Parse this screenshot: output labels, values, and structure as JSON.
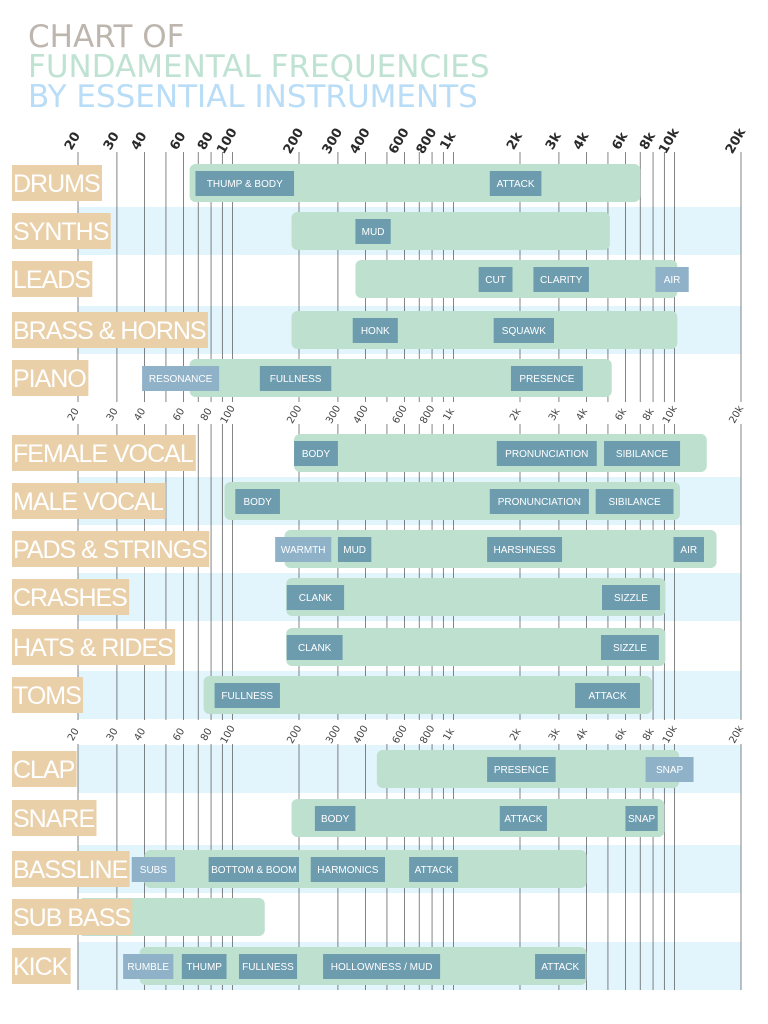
{
  "title": {
    "line1": "CHART OF",
    "line2": "FUNDAMENTAL FREQUENCIES",
    "line3": "BY ESSENTIAL INSTRUMENTS"
  },
  "colors": {
    "title1": "#bdb6ae",
    "title2": "#bfe2d3",
    "title3": "#b9ddf7",
    "category_tag": "#e9d0a9",
    "range_bar": "#bde0cf",
    "zone_box": "#6d9caf",
    "zone_box_outside": "#8fb2c9",
    "stripe": "#e3f5fc",
    "grid": "#333333"
  },
  "chart_data": {
    "type": "range-bar",
    "title": "CHART OF FUNDAMENTAL FREQUENCIES BY ESSENTIAL INSTRUMENTS",
    "x_scale": "log",
    "xlim": [
      20,
      20000
    ],
    "grid": true,
    "gridlines": [
      20,
      30,
      40,
      50,
      60,
      70,
      80,
      90,
      100,
      200,
      300,
      400,
      500,
      600,
      700,
      800,
      900,
      1000,
      2000,
      3000,
      4000,
      5000,
      6000,
      7000,
      8000,
      9000,
      10000,
      20000
    ],
    "tick_values": [
      20,
      30,
      40,
      60,
      80,
      100,
      200,
      300,
      400,
      600,
      800,
      1000,
      2000,
      3000,
      4000,
      6000,
      8000,
      10000,
      20000
    ],
    "tick_labels": [
      "20",
      "30",
      "40",
      "60",
      "80",
      "100",
      "200",
      "300",
      "400",
      "600",
      "800",
      "1k",
      "2k",
      "3k",
      "4k",
      "6k",
      "8k",
      "10k",
      "20k"
    ],
    "groups": [
      {
        "rows": [
          {
            "instrument": "DRUMS",
            "range": [
              64,
              7000
            ],
            "zones": [
              {
                "label": "THUMP & BODY",
                "range": [
                  68,
                  190
                ]
              },
              {
                "label": "ATTACK",
                "range": [
                  1460,
                  2500
                ]
              }
            ]
          },
          {
            "instrument": "SYNTHS",
            "range": [
              185,
              5100
            ],
            "zones": [
              {
                "label": "MUD",
                "range": [
                  360,
                  520
                ]
              }
            ]
          },
          {
            "instrument": "LEADS",
            "range": [
              360,
              10300
            ],
            "zones": [
              {
                "label": "CUT",
                "range": [
                  1300,
                  1850
                ]
              },
              {
                "label": "CLARITY",
                "range": [
                  2300,
                  4100
                ]
              },
              {
                "label": "AIR",
                "range": [
                  8200,
                  11600
                ]
              }
            ]
          },
          {
            "instrument": "BRASS & HORNS",
            "range": [
              185,
              10300
            ],
            "zones": [
              {
                "label": "HONK",
                "range": [
                  350,
                  560
                ]
              },
              {
                "label": "SQUAWK",
                "range": [
                  1520,
                  2850
                ]
              }
            ]
          },
          {
            "instrument": "PIANO",
            "range": [
              64,
              5200
            ],
            "zones": [
              {
                "label": "RESONANCE",
                "range": [
                  39,
                  87
                ]
              },
              {
                "label": "FULLNESS",
                "range": [
                  133,
                  280
                ]
              },
              {
                "label": "PRESENCE",
                "range": [
                  1820,
                  3850
                ]
              }
            ]
          }
        ]
      },
      {
        "rows": [
          {
            "instrument": "FEMALE VOCAL",
            "range": [
              190,
              14000
            ],
            "zones": [
              {
                "label": "BODY",
                "range": [
                  190,
                  300
                ]
              },
              {
                "label": "PRONUNCIATION",
                "range": [
                  1570,
                  4450
                ]
              },
              {
                "label": "SIBILANCE",
                "range": [
                  4800,
                  10600
                ]
              }
            ]
          },
          {
            "instrument": "MALE VOCAL",
            "range": [
              92,
              10600
            ],
            "zones": [
              {
                "label": "BODY",
                "range": [
                  103,
                  164
                ]
              },
              {
                "label": "PRONUNCIATION",
                "range": [
                  1460,
                  4100
                ]
              },
              {
                "label": "SIBILANCE",
                "range": [
                  4400,
                  9900
                ]
              }
            ]
          },
          {
            "instrument": "PADS & STRINGS",
            "range": [
              172,
              15500
            ],
            "zones": [
              {
                "label": "WARMTH",
                "range": [
                  156,
                  280
                ]
              },
              {
                "label": "MUD",
                "range": [
                  300,
                  425
                ]
              },
              {
                "label": "HARSHNESS",
                "range": [
                  1420,
                  3100
                ]
              },
              {
                "label": "AIR",
                "range": [
                  9900,
                  13600
                ]
              }
            ]
          },
          {
            "instrument": "CRASHES",
            "range": [
              175,
              9100
            ],
            "zones": [
              {
                "label": "CLANK",
                "range": [
                  176,
                  320
                ]
              },
              {
                "label": "SIZZLE",
                "range": [
                  4700,
                  8600
                ]
              }
            ]
          },
          {
            "instrument": "HATS & RIDES",
            "range": [
              175,
              9100
            ],
            "zones": [
              {
                "label": "CLANK",
                "range": [
                  176,
                  315
                ]
              },
              {
                "label": "SIZZLE",
                "range": [
                  4650,
                  8500
                ]
              }
            ]
          },
          {
            "instrument": "TOMS",
            "range": [
              74,
              7900
            ],
            "zones": [
              {
                "label": "FULLNESS",
                "range": [
                  83,
                  164
                ]
              },
              {
                "label": "ATTACK",
                "range": [
                  3550,
                  6980
                ]
              }
            ]
          }
        ]
      },
      {
        "rows": [
          {
            "instrument": "CLAP",
            "range": [
              450,
              10500
            ],
            "zones": [
              {
                "label": "PRESENCE",
                "range": [
                  1420,
                  2900
                ]
              },
              {
                "label": "SNAP",
                "range": [
                  7400,
                  12200
                ]
              }
            ]
          },
          {
            "instrument": "SNARE",
            "range": [
              185,
              9000
            ],
            "zones": [
              {
                "label": "BODY",
                "range": [
                  236,
                  360
                ]
              },
              {
                "label": "ATTACK",
                "range": [
                  1620,
                  2650
                ]
              },
              {
                "label": "SNAP",
                "range": [
                  6000,
                  8400
                ]
              }
            ]
          },
          {
            "instrument": "BASSLINE",
            "range": [
              40,
              4000
            ],
            "zones": [
              {
                "label": "SUBS",
                "range": [
                  35,
                  55
                ]
              },
              {
                "label": "BOTTOM & BOOM",
                "range": [
                  78,
                  200
                ]
              },
              {
                "label": "HARMONICS",
                "range": [
                  226,
                  490
                ]
              },
              {
                "label": "ATTACK",
                "range": [
                  630,
                  1050
                ]
              }
            ]
          },
          {
            "instrument": "SUB BASS",
            "range": [
              20,
              140
            ],
            "zones": []
          },
          {
            "instrument": "KICK",
            "range": [
              38,
              4000
            ],
            "zones": [
              {
                "label": "RUMBLE",
                "range": [
                  32,
                  54
                ]
              },
              {
                "label": "THUMP",
                "range": [
                  59,
                  94
                ]
              },
              {
                "label": "FULLNESS",
                "range": [
                  107,
                  196
                ]
              },
              {
                "label": "HOLLOWNESS / MUD",
                "range": [
                  257,
                  870
                ]
              },
              {
                "label": "ATTACK",
                "range": [
                  2340,
                  3950
                ]
              }
            ]
          }
        ]
      }
    ]
  }
}
